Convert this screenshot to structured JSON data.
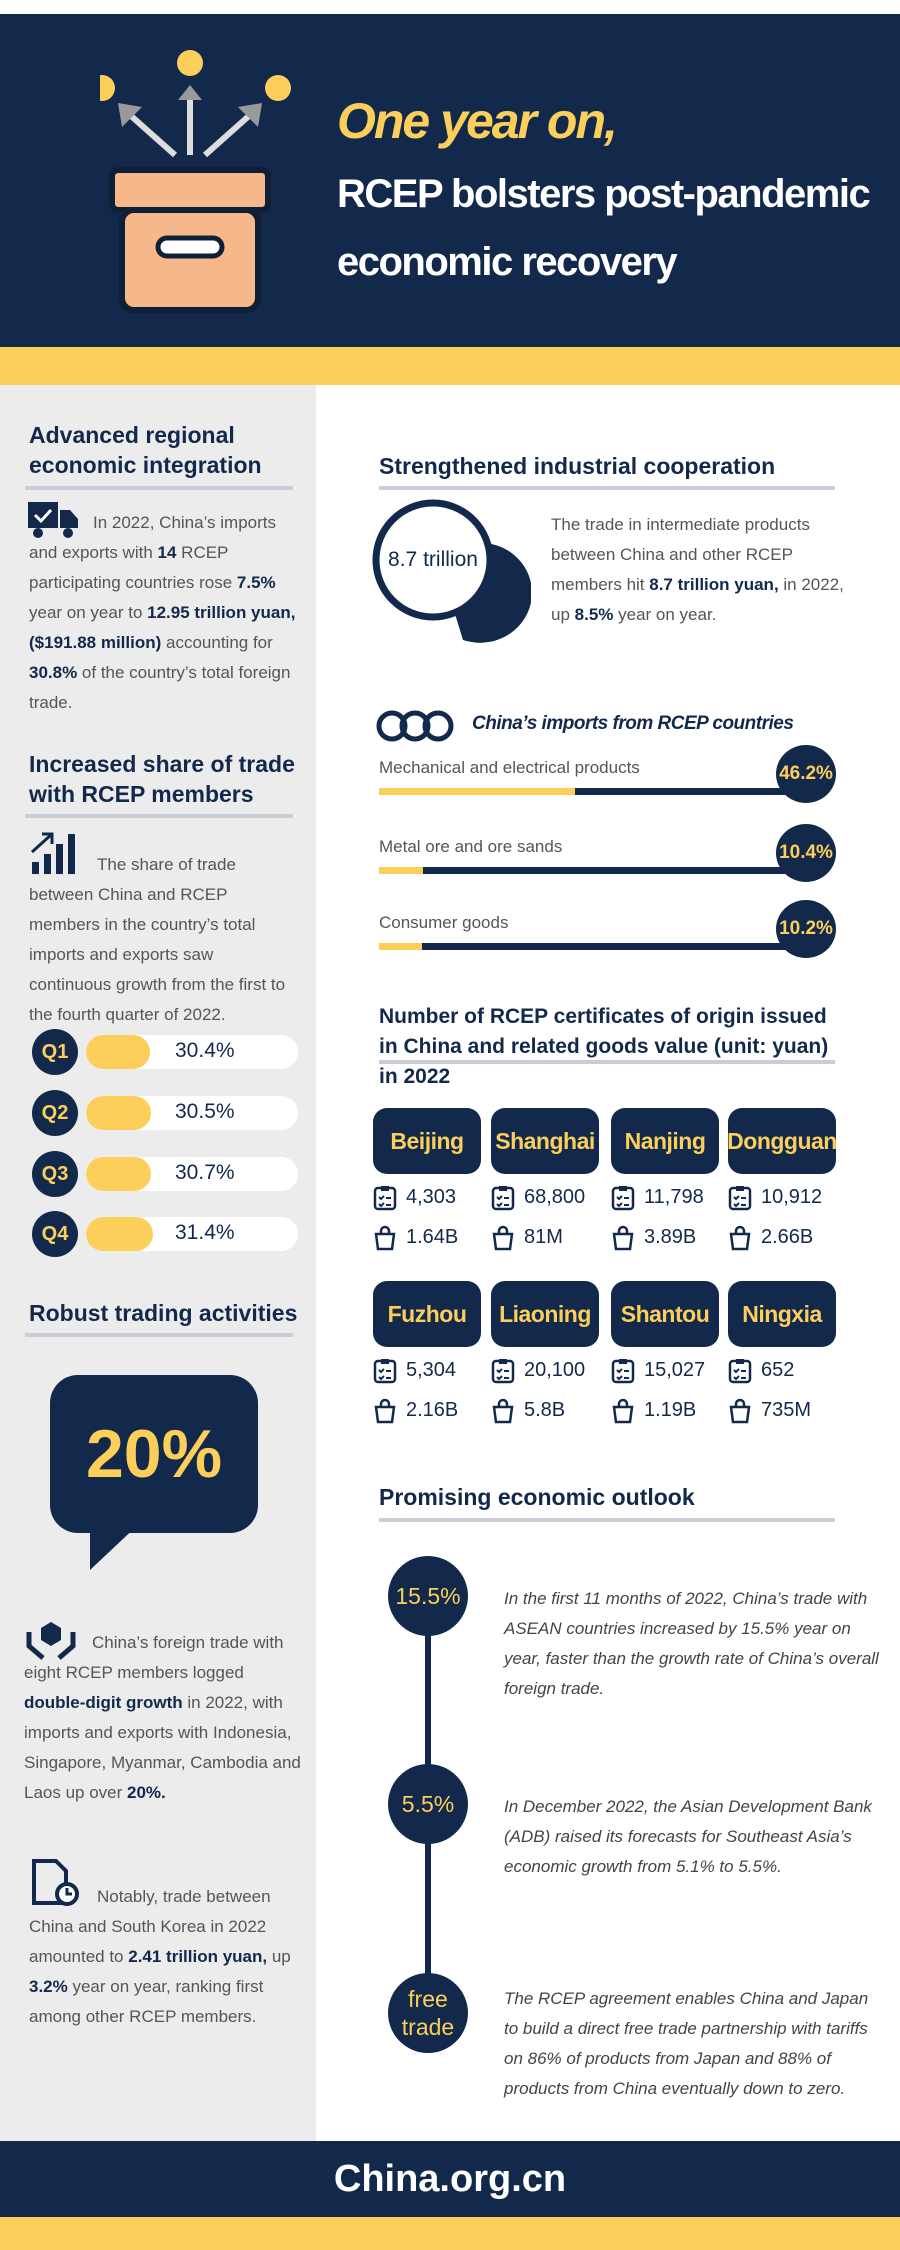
{
  "header": {
    "title_line1": "One year on,",
    "title_line2": "RCEP bolsters post-pandemic",
    "title_line3": "economic recovery"
  },
  "left": {
    "integration": {
      "heading": "Advanced regional economic integration",
      "text": [
        "In 2022, China’s imports and exports with ",
        {
          "text": "14",
          "bold": true
        },
        " RCEP participating countries rose ",
        {
          "text": "7.5%",
          "bold": true
        },
        " year on year to ",
        {
          "text": "12.95 trillion yuan,($191.88 million)",
          "bold": true
        },
        " accounting for ",
        {
          "text": "30.8%",
          "bold": true
        },
        " of the country’s total foreign trade."
      ]
    },
    "share": {
      "heading": "Increased share of trade with RCEP members",
      "text": [
        "The share of trade between China and RCEP members in the country’s total imports and exports saw continuous growth from the first to the fourth quarter of 2022."
      ],
      "quarters": [
        {
          "label": "Q1",
          "value": 30.4,
          "value_label": "30.4%"
        },
        {
          "label": "Q2",
          "value": 30.5,
          "value_label": "30.5%"
        },
        {
          "label": "Q3",
          "value": 30.7,
          "value_label": "30.7%"
        },
        {
          "label": "Q4",
          "value": 31.4,
          "value_label": "31.4%"
        }
      ]
    },
    "activities": {
      "heading": "Robust trading activities",
      "highlight": "20%",
      "paragraphs": [
        [
          "China’s foreign trade with eight RCEP members logged ",
          {
            "text": "double-digit growth",
            "bold": true
          },
          " in 2022, with imports and exports with Indonesia, Singapore, Myanmar, Cambodia and Laos up over ",
          {
            "text": "20%.",
            "bold": true
          }
        ],
        [
          "Notably, trade between China and South Korea in 2022 amounted to ",
          {
            "text": "2.41 trillion yuan,",
            "bold": true
          },
          " up ",
          {
            "text": "3.2%",
            "bold": true
          },
          " year on year, ranking first among other RCEP members."
        ]
      ]
    }
  },
  "right": {
    "cooperation": {
      "heading": "Strengthened industrial cooperation",
      "bubble": "8.7 trillion",
      "text": [
        "The trade in intermediate products between China and other RCEP members hit ",
        {
          "text": "8.7 trillion yuan,",
          "bold": true
        },
        " in 2022, up ",
        {
          "text": "8.5%",
          "bold": true
        },
        " year on year."
      ]
    },
    "imports": {
      "title": "China’s imports from RCEP countries",
      "items": [
        {
          "name": "Mechanical and electrical products",
          "value": 46.2,
          "value_label": "46.2%"
        },
        {
          "name": "Metal ore and ore sands",
          "value": 10.4,
          "value_label": "10.4%"
        },
        {
          "name": "Consumer goods",
          "value": 10.2,
          "value_label": "10.2%"
        }
      ]
    },
    "certificates": {
      "heading": "Number of RCEP certificates of origin issued in China and related goods value (unit: yuan) in 2022",
      "cities": [
        {
          "name": "Beijing",
          "certificates": "4,303",
          "value": "1.64B"
        },
        {
          "name": "Shanghai",
          "certificates": "68,800",
          "value": "81M"
        },
        {
          "name": "Nanjing",
          "certificates": "11,798",
          "value": "3.89B"
        },
        {
          "name": "Dongguan",
          "certificates": "10,912",
          "value": "2.66B"
        },
        {
          "name": "Fuzhou",
          "certificates": "5,304",
          "value": "2.16B"
        },
        {
          "name": "Liaoning",
          "certificates": "20,100",
          "value": "5.8B"
        },
        {
          "name": "Shantou",
          "certificates": "15,027",
          "value": "1.19B"
        },
        {
          "name": "Ningxia",
          "certificates": "652",
          "value": "735M"
        }
      ]
    },
    "outlook": {
      "heading": "Promising economic outlook",
      "items": [
        {
          "badge": "15.5%",
          "text": "In the first 11 months of 2022, China’s trade with ASEAN countries increased by 15.5% year on year, faster than the growth rate of China’s overall foreign trade."
        },
        {
          "badge": "5.5%",
          "text": "In December 2022, the Asian Development Bank (ADB) raised its forecasts for Southeast Asia’s economic growth from 5.1% to 5.5%."
        },
        {
          "badge": "free trade",
          "text": "The RCEP agreement enables China and Japan to build a direct free trade partnership with tariffs on 86% of products from Japan and 88% of products from China eventually down to zero."
        }
      ]
    }
  },
  "footer": {
    "site": "China.org.cn"
  }
}
